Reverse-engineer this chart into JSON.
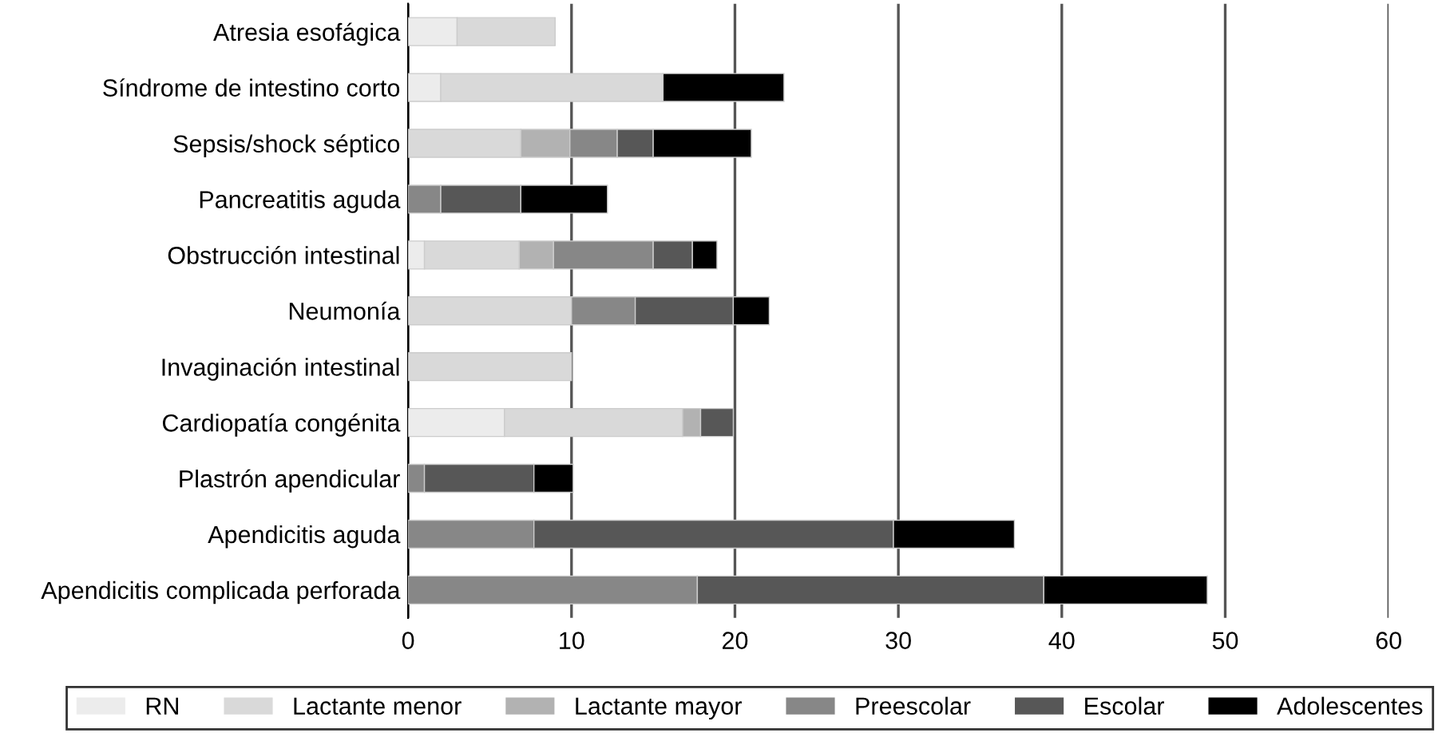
{
  "chart_data": {
    "type": "bar",
    "orientation": "horizontal",
    "stacked": true,
    "categories": [
      "Atresia esofágica",
      "Síndrome de intestino corto",
      "Sepsis/shock séptico",
      "Pancreatitis aguda",
      "Obstrucción intestinal",
      "Neumonía",
      "Invaginación intestinal",
      "Cardiopatía congénita",
      "Plastrón apendicular",
      "Apendicitis aguda",
      "Apendicitis complicada perforada"
    ],
    "series": [
      {
        "name": "RN",
        "color": "#ececec",
        "values": [
          3,
          2,
          null,
          null,
          1,
          null,
          null,
          5.9,
          null,
          null,
          null
        ]
      },
      {
        "name": "Lactante menor",
        "color": "#d9d9d9",
        "values": [
          6,
          13.6,
          6.9,
          null,
          5.8,
          10,
          10,
          10.9,
          null,
          null,
          null
        ]
      },
      {
        "name": "Lactante mayor",
        "color": "#b2b2b2",
        "values": [
          null,
          null,
          3,
          null,
          2.1,
          null,
          null,
          1.1,
          null,
          null,
          null
        ]
      },
      {
        "name": "Preescolar",
        "color": "#878787",
        "values": [
          null,
          null,
          2.9,
          2,
          6.1,
          3.9,
          null,
          null,
          1,
          7.7,
          17.7
        ]
      },
      {
        "name": "Escolar",
        "color": "#575757",
        "values": [
          null,
          null,
          2.2,
          4.9,
          2.4,
          6,
          null,
          2,
          6.7,
          22,
          21.2
        ]
      },
      {
        "name": "Adolescentes",
        "color": "#000000",
        "values": [
          null,
          7.4,
          6,
          5.3,
          1.5,
          2.2,
          null,
          null,
          2.4,
          7.4,
          10
        ]
      }
    ],
    "xlim": [
      0,
      60
    ],
    "xticks": [
      0,
      10,
      20,
      30,
      40,
      50,
      60
    ],
    "grid": "x",
    "legend": "bottom"
  }
}
